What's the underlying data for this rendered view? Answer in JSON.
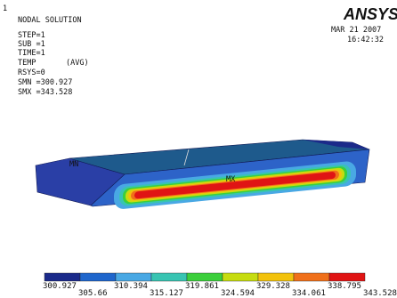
{
  "corner": "1",
  "header": {
    "title": "NODAL SOLUTION",
    "step": "STEP=1",
    "sub": "SUB =1",
    "time": "TIME=1",
    "quantity": "TEMP",
    "average": "(AVG)",
    "rsys": "RSYS=0",
    "smn": "SMN =300.927",
    "smx": "SMX =343.528"
  },
  "logo": "ANSYS",
  "date": "MAR 21 2007",
  "clock": "16:42:32",
  "labels": {
    "min": "MN",
    "max": "MX"
  },
  "colorbar": {
    "colors": [
      "#1b2a8a",
      "#1f66cc",
      "#49a8e4",
      "#38c4b2",
      "#3ccf3c",
      "#c6dc10",
      "#f2c20c",
      "#f0701a",
      "#e01414"
    ],
    "labels": [
      "300.927",
      "305.66",
      "310.394",
      "315.127",
      "319.861",
      "324.594",
      "329.328",
      "334.061",
      "338.795",
      "343.528"
    ]
  }
}
